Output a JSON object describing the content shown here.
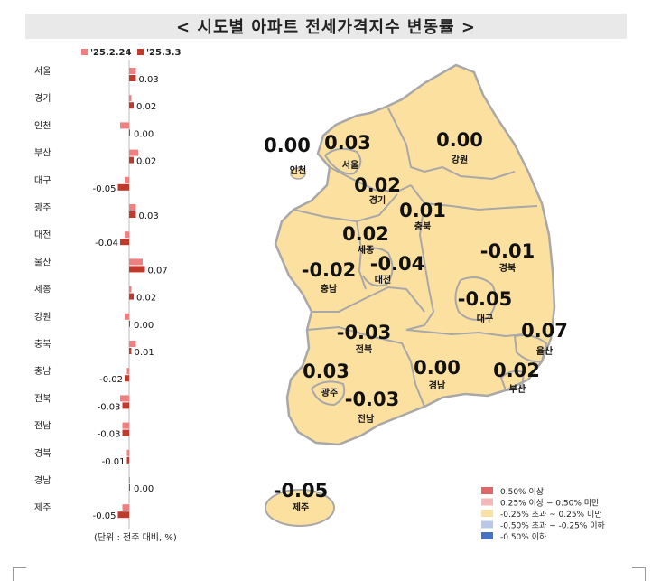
{
  "title": "< 시도별 아파트 전세가격지수 변동률 >",
  "unit_note": "(단위 : 전주 대비, %)",
  "colors": {
    "prev_week": "#f08080",
    "curr_week": "#c0392b",
    "map_fill": "#fce0a0",
    "map_border": "#a8a8a8",
    "title_bg": "#e9e9e9"
  },
  "chart_data": {
    "type": "bar",
    "orientation": "horizontal",
    "categories": [
      "서울",
      "경기",
      "인천",
      "부산",
      "대구",
      "광주",
      "대전",
      "울산",
      "세종",
      "강원",
      "충북",
      "충남",
      "전북",
      "전남",
      "경북",
      "경남",
      "제주"
    ],
    "series": [
      {
        "name": "'25.2.24",
        "values": [
          0.03,
          0.01,
          -0.04,
          0.04,
          -0.02,
          0.03,
          -0.02,
          0.06,
          0.01,
          -0.02,
          0.03,
          -0.01,
          -0.04,
          -0.03,
          -0.01,
          0.0,
          -0.03
        ]
      },
      {
        "name": "'25.3.3",
        "values": [
          0.03,
          0.02,
          0.0,
          0.02,
          -0.05,
          0.03,
          -0.04,
          0.07,
          0.02,
          0.0,
          0.01,
          -0.02,
          -0.03,
          -0.03,
          -0.01,
          0.0,
          -0.05
        ]
      }
    ],
    "value_labels": [
      "0.03",
      "0.02",
      "0.00",
      "0.02",
      "-0.05",
      "0.03",
      "-0.04",
      "0.07",
      "0.02",
      "0.00",
      "0.01",
      "-0.02",
      "-0.03",
      "-0.03",
      "-0.01",
      "0.00",
      "-0.05"
    ],
    "legend_position": "top",
    "grid": false
  },
  "map": {
    "regions": [
      {
        "name": "인천",
        "value": "0.00"
      },
      {
        "name": "서울",
        "value": "0.03"
      },
      {
        "name": "강원",
        "value": "0.00"
      },
      {
        "name": "경기",
        "value": "0.02"
      },
      {
        "name": "충북",
        "value": "0.01"
      },
      {
        "name": "세종",
        "value": "0.02"
      },
      {
        "name": "경북",
        "value": "-0.01"
      },
      {
        "name": "충남",
        "value": "-0.02"
      },
      {
        "name": "대전",
        "value": "-0.04"
      },
      {
        "name": "대구",
        "value": "-0.05"
      },
      {
        "name": "울산",
        "value": "0.07"
      },
      {
        "name": "전북",
        "value": "-0.03"
      },
      {
        "name": "광주",
        "value": "0.03"
      },
      {
        "name": "경남",
        "value": "0.00"
      },
      {
        "name": "부산",
        "value": "0.02"
      },
      {
        "name": "전남",
        "value": "-0.03"
      },
      {
        "name": "제주",
        "value": "-0.05"
      }
    ]
  },
  "legend": {
    "items": [
      {
        "label": "0.50% 이상",
        "color": "#e06666"
      },
      {
        "label": "0.25% 이상 ~ 0.50% 미만",
        "color": "#f4b8b8"
      },
      {
        "label": "-0.25% 초과 ~ 0.25% 미만",
        "color": "#fce0a0"
      },
      {
        "label": "-0.50% 초과 ~ -0.25% 이하",
        "color": "#b8c8e8"
      },
      {
        "label": "-0.50% 이하",
        "color": "#4472c4"
      }
    ]
  }
}
